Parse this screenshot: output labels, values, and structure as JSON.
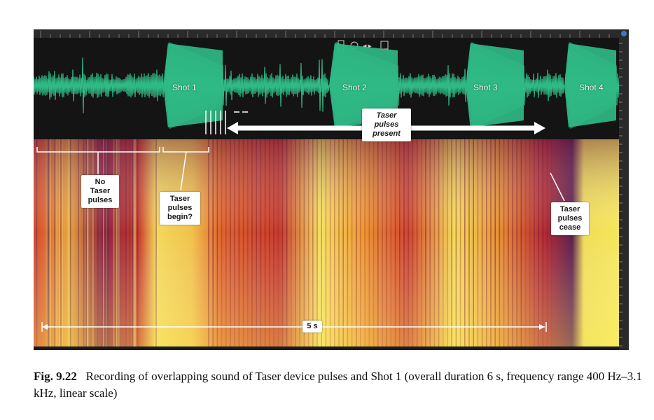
{
  "figure": {
    "shots": [
      "Shot 1",
      "Shot 2",
      "Shot 3",
      "Shot 4"
    ],
    "labels": {
      "taser_present": "Taser pulses present",
      "no_taser": "No Taser pulses",
      "taser_begin": "Taser pulses begin?",
      "taser_cease": "Taser pulses cease",
      "duration": "5 s"
    }
  },
  "caption": {
    "label": "Fig. 9.22",
    "text": "Recording of overlapping sound of Taser device pulses and Shot 1 (overall duration 6 s, frequency range 400 Hz–3.1 kHz, linear scale)"
  },
  "colors": {
    "waveform": "#2fb985",
    "background": "#1b1b1b",
    "spec_yellow": "#f5e65a",
    "spec_orange": "#e57a1f",
    "spec_red": "#b3262a",
    "spec_purple": "#4a1a4e"
  }
}
